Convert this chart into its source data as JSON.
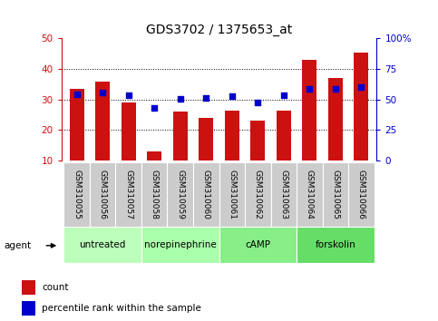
{
  "title": "GDS3702 / 1375653_at",
  "samples": [
    "GSM310055",
    "GSM310056",
    "GSM310057",
    "GSM310058",
    "GSM310059",
    "GSM310060",
    "GSM310061",
    "GSM310062",
    "GSM310063",
    "GSM310064",
    "GSM310065",
    "GSM310066"
  ],
  "counts": [
    33.5,
    36.0,
    29.0,
    13.0,
    26.0,
    24.0,
    26.5,
    23.0,
    26.5,
    43.0,
    37.0,
    45.5
  ],
  "percentiles": [
    54.5,
    55.5,
    53.5,
    43.0,
    50.5,
    51.5,
    52.5,
    47.5,
    53.5,
    59.0,
    58.5,
    60.0
  ],
  "ylim_left": [
    10,
    50
  ],
  "ylim_right": [
    0,
    100
  ],
  "yticks_left": [
    10,
    20,
    30,
    40,
    50
  ],
  "yticks_right": [
    0,
    25,
    50,
    75,
    100
  ],
  "groups": [
    {
      "label": "untreated",
      "indices": [
        0,
        1,
        2
      ],
      "color": "#bbffbb"
    },
    {
      "label": "norepinephrine",
      "indices": [
        3,
        4,
        5
      ],
      "color": "#aaffaa"
    },
    {
      "label": "cAMP",
      "indices": [
        6,
        7,
        8
      ],
      "color": "#88ee88"
    },
    {
      "label": "forskolin",
      "indices": [
        9,
        10,
        11
      ],
      "color": "#66dd66"
    }
  ],
  "bar_color": "#cc1111",
  "dot_color": "#0000cc",
  "left_tick_color": "#cc1111",
  "right_tick_color": "#0000cc",
  "bar_width": 0.55,
  "sample_bg_color": "#cccccc",
  "agent_label": "agent",
  "legend_count_label": "count",
  "legend_pct_label": "percentile rank within the sample",
  "title_fontsize": 10,
  "tick_fontsize": 7.5,
  "label_fontsize": 7.5,
  "sample_fontsize": 6.5
}
